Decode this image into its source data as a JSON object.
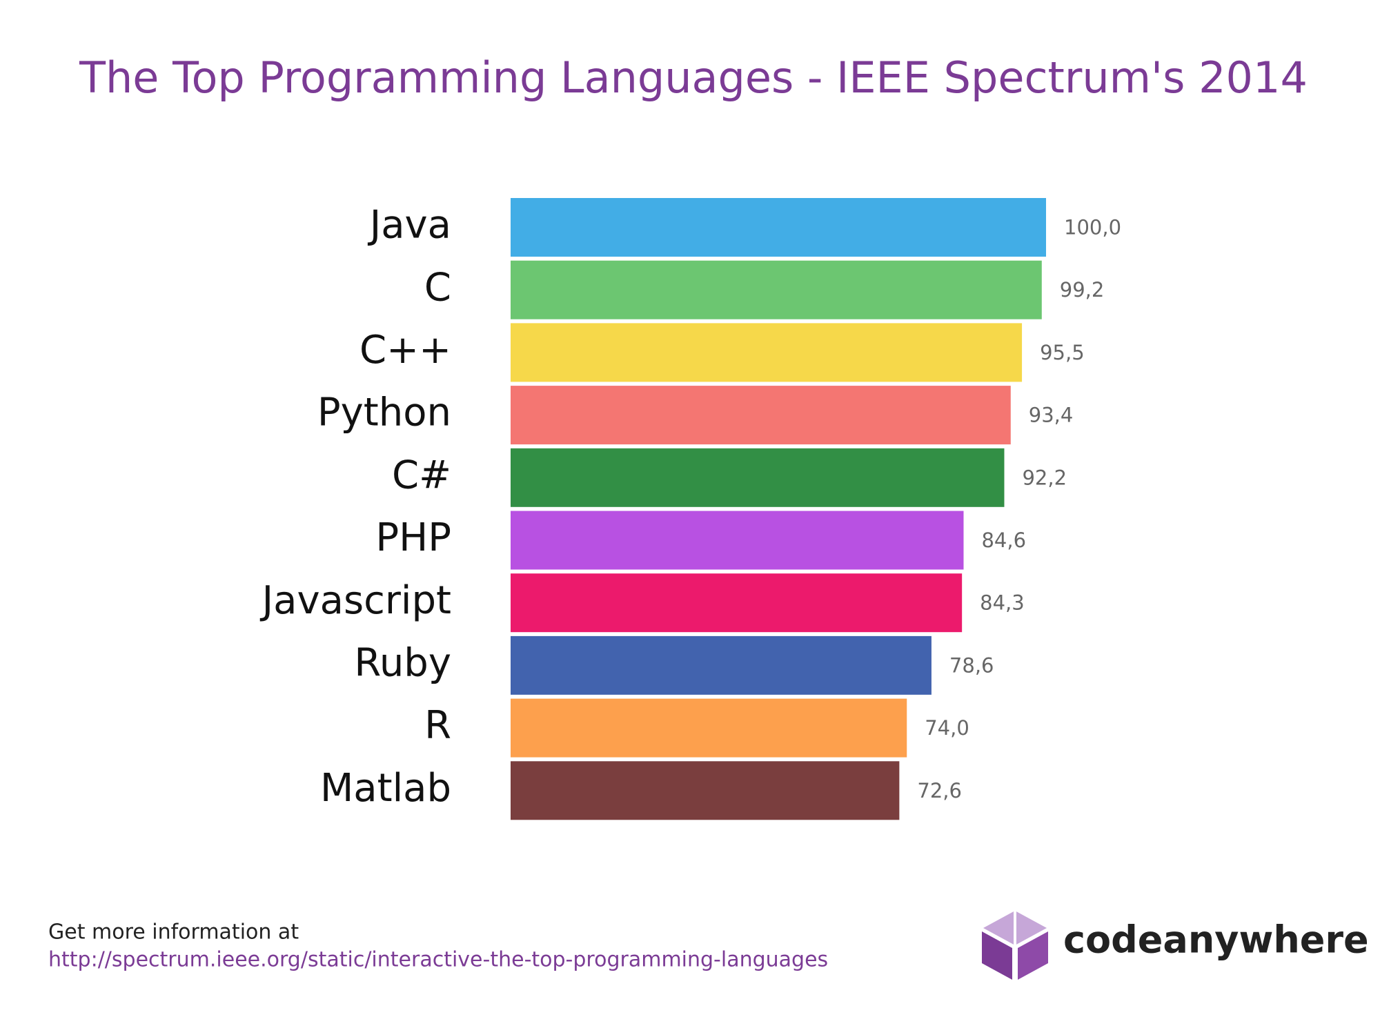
{
  "chart_data": {
    "type": "bar",
    "orientation": "horizontal",
    "title": "The Top Programming Languages - IEEE Spectrum's 2014",
    "categories": [
      "Java",
      "C",
      "C++",
      "Python",
      "C#",
      "PHP",
      "Javascript",
      "Ruby",
      "R",
      "Matlab"
    ],
    "values": [
      100.0,
      99.2,
      95.5,
      93.4,
      92.2,
      84.6,
      84.3,
      78.6,
      74.0,
      72.6
    ],
    "value_labels": [
      "100,0",
      "99,2",
      "95,5",
      "93,4",
      "92,2",
      "84,6",
      "84,3",
      "78,6",
      "74,0",
      "72,6"
    ],
    "colors": [
      "#42ade6",
      "#6cc671",
      "#f6d84a",
      "#f47672",
      "#328f45",
      "#b851e2",
      "#ec1a6c",
      "#4263ae",
      "#fda04d",
      "#7a3e3e"
    ]
  },
  "footer": {
    "text": "Get more information at",
    "url": "http://spectrum.ieee.org/static/interactive-the-top-programming-languages"
  },
  "logo": {
    "text": "codeanywhere"
  }
}
